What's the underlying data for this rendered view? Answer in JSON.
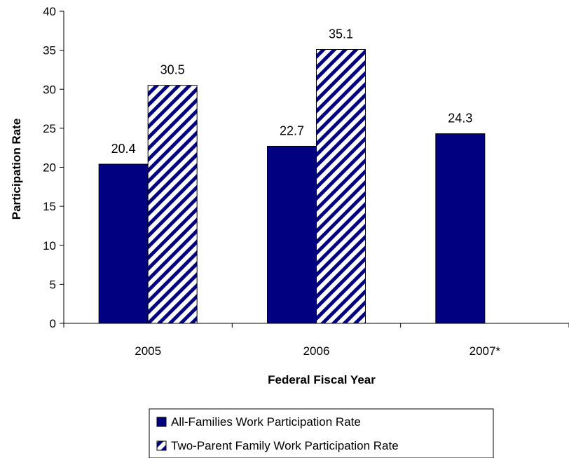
{
  "chart_data": {
    "type": "bar",
    "categories": [
      "2005",
      "2006",
      "2007*"
    ],
    "series": [
      {
        "name": "All-Families Work Participation Rate",
        "values": [
          20.4,
          22.7,
          24.3
        ],
        "color": "#000080",
        "pattern": "solid"
      },
      {
        "name": "Two-Parent Family Work Participation Rate",
        "values": [
          30.5,
          35.1,
          null
        ],
        "color": "#000080",
        "pattern": "diagonal-hatch"
      }
    ],
    "data_labels": [
      [
        "20.4",
        "22.7",
        "24.3"
      ],
      [
        "30.5",
        "35.1",
        ""
      ]
    ],
    "xlabel": "Federal Fiscal Year",
    "ylabel": "Participation Rate",
    "ylim": [
      0,
      40
    ],
    "yticks": [
      0,
      5,
      10,
      15,
      20,
      25,
      30,
      35,
      40
    ],
    "grid": false,
    "legend_position": "bottom"
  }
}
